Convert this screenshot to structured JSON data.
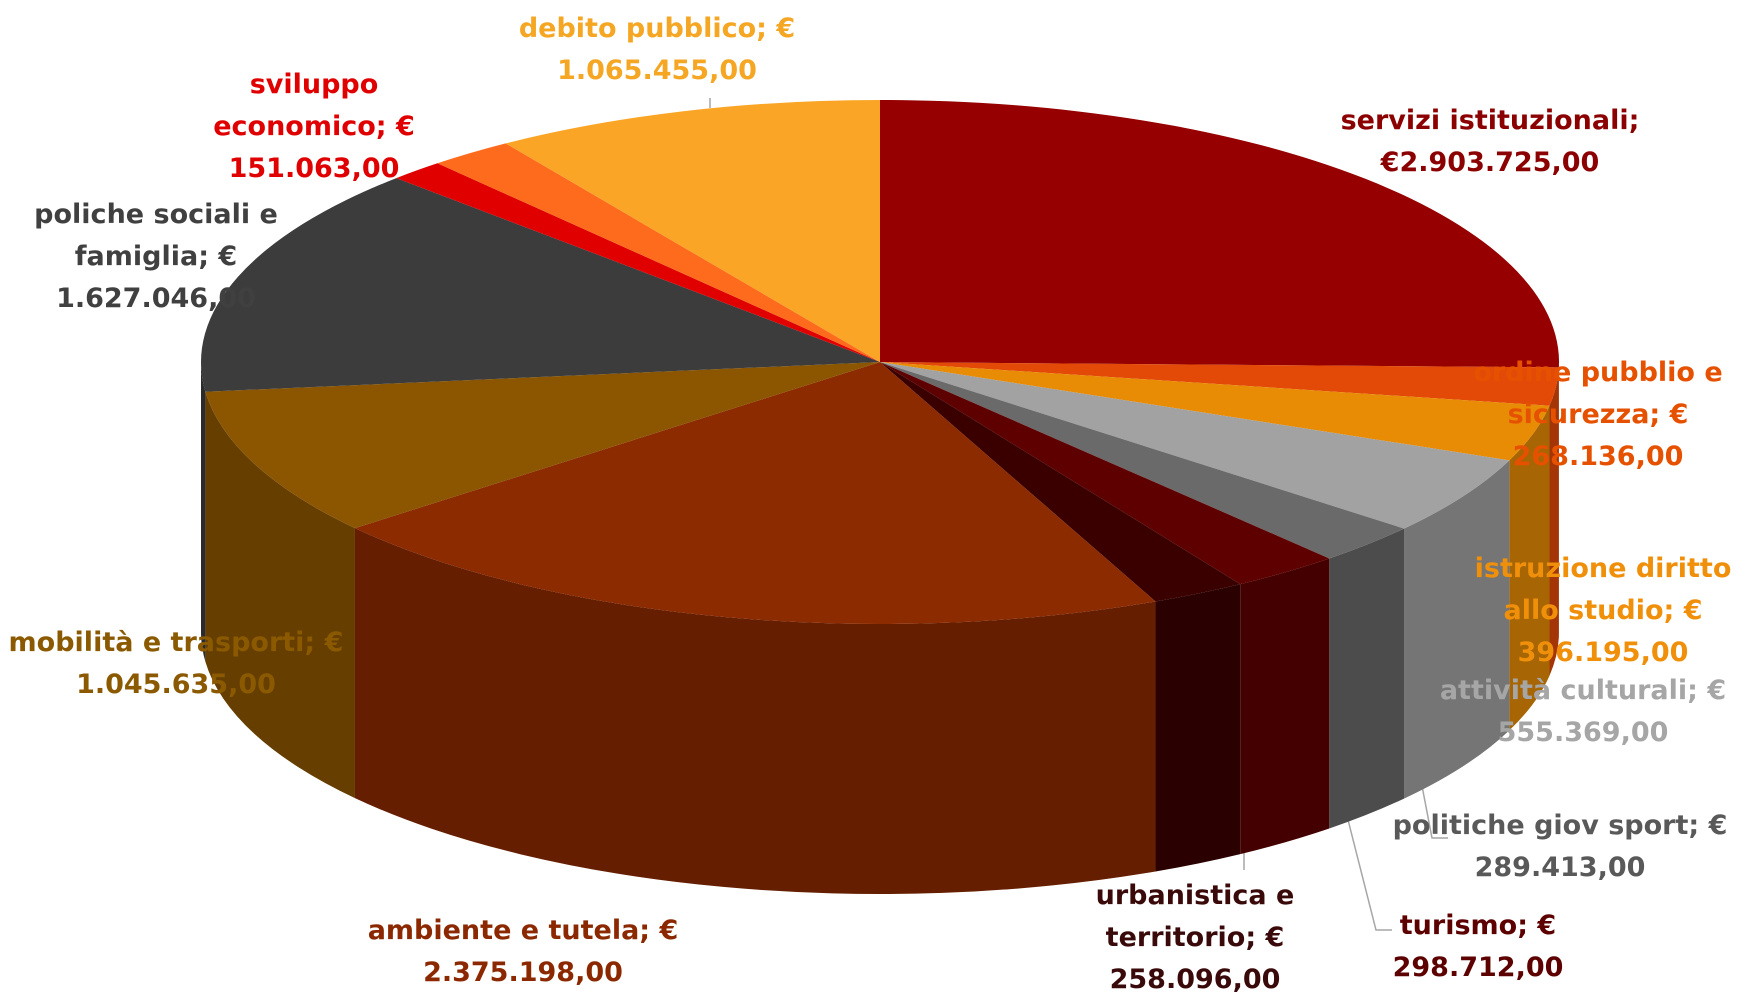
{
  "chart_data": {
    "type": "pie3d",
    "categories": [
      "servizi istituzionali;",
      "ordine pubblio e sicurezza;",
      "istruzione  diritto allo studio;",
      "attività culturali;",
      "politiche giov sport;",
      "turismo;",
      "urbanistica e territorio;",
      "ambiente e tutela;",
      "mobilità e trasporti;",
      "poliche sociali e famiglia;",
      "sviluppo economico;",
      null,
      "debito pubblico;"
    ],
    "values": [
      2903725,
      268136,
      396195,
      555369,
      289413,
      298712,
      258096,
      2375198,
      1045635,
      1627046,
      151063,
      230000,
      1065455
    ],
    "value_labels": [
      "€2.903.725,00",
      "€ 268.136,00",
      "€ 396.195,00",
      "€ 555.369,00",
      "€ 289.413,00",
      "€ 298.712,00",
      "€ 258.096,00",
      "€ 2.375.198,00",
      "€ 1.045.635,00",
      "€ 1.627.046,00",
      "€ 151.063,00",
      null,
      "€ 1.065.455,00"
    ],
    "colors": [
      "#960000",
      "#e34a08",
      "#e88c06",
      "#a2a2a2",
      "#6a6a6a",
      "#5e0000",
      "#3a0000",
      "#8c2a00",
      "#8c5600",
      "#3c3c3c",
      "#e00000",
      "#ff6b1c",
      "#faa526"
    ]
  }
}
